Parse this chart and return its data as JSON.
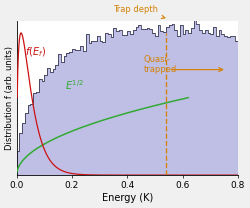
{
  "xlabel": "Energy (K)",
  "ylabel": "Distribution f (arb. units)",
  "xlim": [
    0,
    0.8
  ],
  "ylim": [
    0,
    1.05
  ],
  "trap_depth": 0.54,
  "trap_depth_color": "#d4820a",
  "trap_depth_label": "Trap depth",
  "quasi_trapped_label": "Quasi-\ntrapped",
  "hist_fill_color": "#aaaadd",
  "hist_edge_color": "#1a1a3a",
  "green_color": "#33aa33",
  "red_color": "#cc1111",
  "background_color": "#f0f0f0",
  "T_hist": 0.3,
  "T_red": 0.032,
  "n_bins": 80,
  "noise_seed": 77,
  "noise_scale": 0.03,
  "figsize": [
    2.5,
    2.08
  ],
  "dpi": 100
}
